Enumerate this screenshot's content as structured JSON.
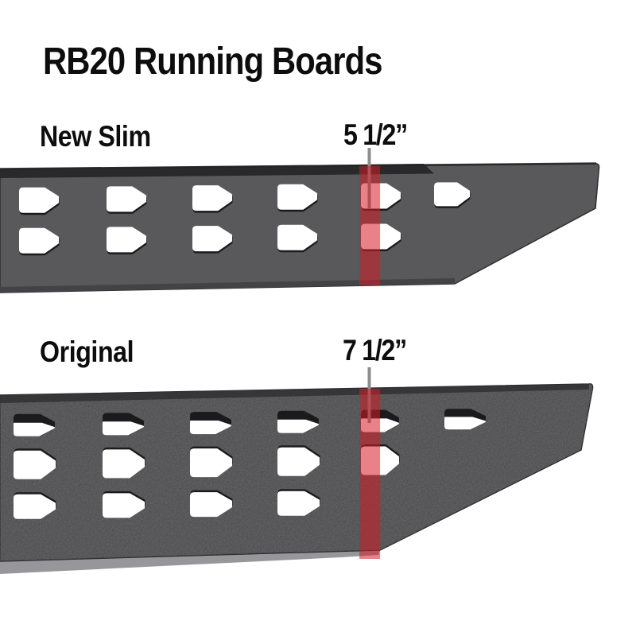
{
  "title": "RB20 Running Boards",
  "boards": [
    {
      "id": "new-slim",
      "label": "New Slim",
      "measurement": "5 1/2”"
    },
    {
      "id": "original",
      "label": "Original",
      "measurement": "7 1/2”"
    }
  ],
  "colors": {
    "background": "#ffffff",
    "text": "#0d0d0d",
    "highlight_red": "rgba(213,28,38,0.55)",
    "pointer_gray": "#8e8e90",
    "slim_body": "#59595b",
    "slim_rail": "#29292b",
    "slim_bottom_edge": "#434345",
    "slim_outline": "#2f2f31",
    "original_body": "#4a4a4c",
    "original_top_edge": "#303032",
    "original_outline": "#2a2a2c",
    "original_flange": "#97979b",
    "cutout_white": "#ffffff",
    "cutout_shadow": "#1b1b1d"
  }
}
